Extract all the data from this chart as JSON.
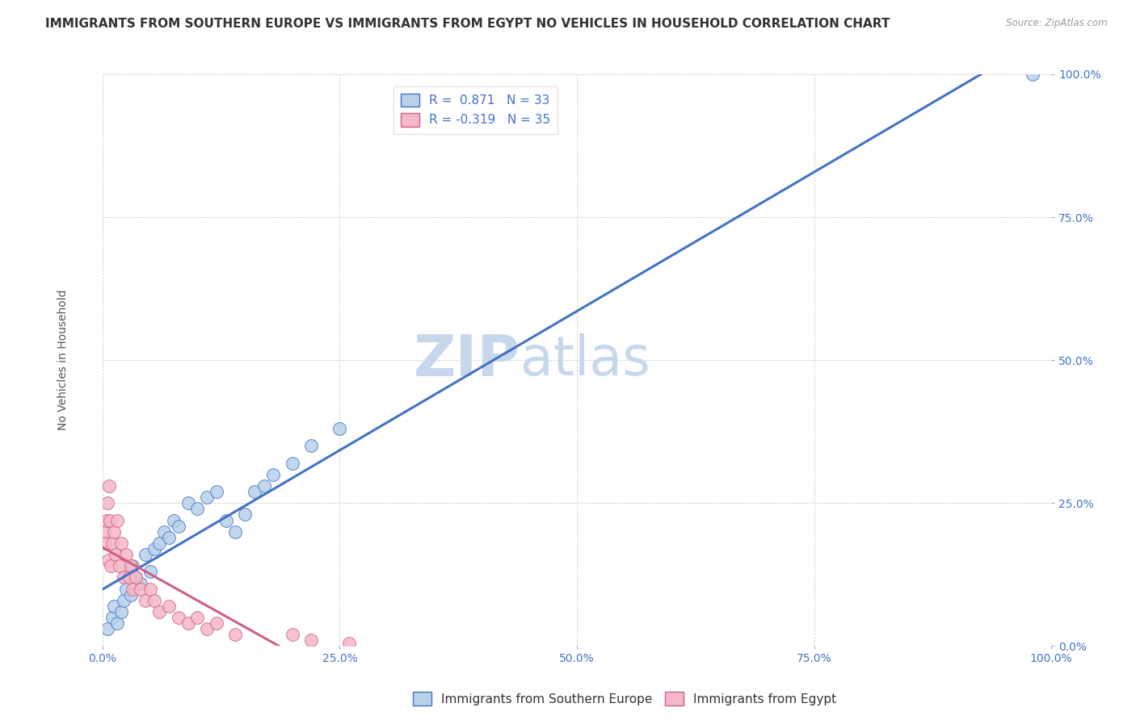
{
  "title": "IMMIGRANTS FROM SOUTHERN EUROPE VS IMMIGRANTS FROM EGYPT NO VEHICLES IN HOUSEHOLD CORRELATION CHART",
  "source": "Source: ZipAtlas.com",
  "ylabel": "No Vehicles in Household",
  "blue_label": "Immigrants from Southern Europe",
  "pink_label": "Immigrants from Egypt",
  "blue_R": 0.871,
  "blue_N": 33,
  "pink_R": -0.319,
  "pink_N": 35,
  "blue_color": "#b8d0ea",
  "pink_color": "#f5b8c8",
  "blue_line_color": "#4472c4",
  "pink_line_color": "#d06080",
  "watermark_zip": "ZIP",
  "watermark_atlas": "atlas",
  "blue_x": [
    0.5,
    1.0,
    1.2,
    1.5,
    2.0,
    2.2,
    2.5,
    3.0,
    3.2,
    3.5,
    4.0,
    4.5,
    5.0,
    5.5,
    6.0,
    6.5,
    7.0,
    7.5,
    8.0,
    9.0,
    10.0,
    11.0,
    12.0,
    13.0,
    14.0,
    15.0,
    16.0,
    17.0,
    18.0,
    20.0,
    22.0,
    25.0,
    98.0
  ],
  "blue_y": [
    3.0,
    5.0,
    7.0,
    4.0,
    6.0,
    8.0,
    10.0,
    9.0,
    14.0,
    12.0,
    11.0,
    16.0,
    13.0,
    17.0,
    18.0,
    20.0,
    19.0,
    22.0,
    21.0,
    25.0,
    24.0,
    26.0,
    27.0,
    22.0,
    20.0,
    23.0,
    27.0,
    28.0,
    30.0,
    32.0,
    35.0,
    38.0,
    100.0
  ],
  "pink_x": [
    0.2,
    0.3,
    0.4,
    0.5,
    0.6,
    0.7,
    0.8,
    0.9,
    1.0,
    1.2,
    1.4,
    1.5,
    1.8,
    2.0,
    2.2,
    2.5,
    2.8,
    3.0,
    3.2,
    3.5,
    4.0,
    4.5,
    5.0,
    5.5,
    6.0,
    7.0,
    8.0,
    9.0,
    10.0,
    11.0,
    12.0,
    14.0,
    20.0,
    22.0,
    26.0
  ],
  "pink_y": [
    20.0,
    18.0,
    22.0,
    25.0,
    15.0,
    28.0,
    22.0,
    14.0,
    18.0,
    20.0,
    16.0,
    22.0,
    14.0,
    18.0,
    12.0,
    16.0,
    12.0,
    14.0,
    10.0,
    12.0,
    10.0,
    8.0,
    10.0,
    8.0,
    6.0,
    7.0,
    5.0,
    4.0,
    5.0,
    3.0,
    4.0,
    2.0,
    2.0,
    1.0,
    0.5
  ],
  "background_color": "#ffffff",
  "grid_color": "#cccccc",
  "axis_color": "#4472c4",
  "title_color": "#333333",
  "title_fontsize": 11.0,
  "legend_fontsize": 11,
  "tick_fontsize": 10,
  "watermark_color_zip": "#c8d8ec",
  "watermark_color_atlas": "#c8d8ec",
  "watermark_fontsize": 52
}
